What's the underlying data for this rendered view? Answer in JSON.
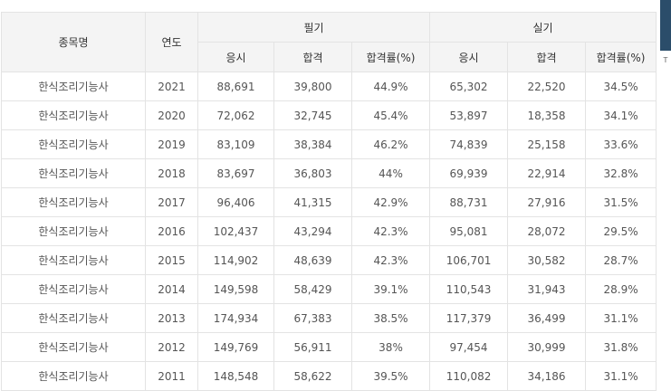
{
  "table": {
    "headers": {
      "item": "종목명",
      "year": "연도",
      "written": "필기",
      "practical": "실기",
      "applicants": "응시",
      "passed": "합격",
      "pass_rate": "합격률(%)"
    },
    "rows": [
      {
        "item": "한식조리기능사",
        "year": "2021",
        "w_app": "88,691",
        "w_pass": "39,800",
        "w_rate": "44.9%",
        "p_app": "65,302",
        "p_pass": "22,520",
        "p_rate": "34.5%"
      },
      {
        "item": "한식조리기능사",
        "year": "2020",
        "w_app": "72,062",
        "w_pass": "32,745",
        "w_rate": "45.4%",
        "p_app": "53,897",
        "p_pass": "18,358",
        "p_rate": "34.1%"
      },
      {
        "item": "한식조리기능사",
        "year": "2019",
        "w_app": "83,109",
        "w_pass": "38,384",
        "w_rate": "46.2%",
        "p_app": "74,839",
        "p_pass": "25,158",
        "p_rate": "33.6%"
      },
      {
        "item": "한식조리기능사",
        "year": "2018",
        "w_app": "83,697",
        "w_pass": "36,803",
        "w_rate": "44%",
        "p_app": "69,939",
        "p_pass": "22,914",
        "p_rate": "32.8%"
      },
      {
        "item": "한식조리기능사",
        "year": "2017",
        "w_app": "96,406",
        "w_pass": "41,315",
        "w_rate": "42.9%",
        "p_app": "88,731",
        "p_pass": "27,916",
        "p_rate": "31.5%"
      },
      {
        "item": "한식조리기능사",
        "year": "2016",
        "w_app": "102,437",
        "w_pass": "43,294",
        "w_rate": "42.3%",
        "p_app": "95,081",
        "p_pass": "28,072",
        "p_rate": "29.5%"
      },
      {
        "item": "한식조리기능사",
        "year": "2015",
        "w_app": "114,902",
        "w_pass": "48,639",
        "w_rate": "42.3%",
        "p_app": "106,701",
        "p_pass": "30,582",
        "p_rate": "28.7%"
      },
      {
        "item": "한식조리기능사",
        "year": "2014",
        "w_app": "149,598",
        "w_pass": "58,429",
        "w_rate": "39.1%",
        "p_app": "110,543",
        "p_pass": "31,943",
        "p_rate": "28.9%"
      },
      {
        "item": "한식조리기능사",
        "year": "2013",
        "w_app": "174,934",
        "w_pass": "67,383",
        "w_rate": "38.5%",
        "p_app": "117,379",
        "p_pass": "36,499",
        "p_rate": "31.1%"
      },
      {
        "item": "한식조리기능사",
        "year": "2012",
        "w_app": "149,769",
        "w_pass": "56,911",
        "w_rate": "38%",
        "p_app": "97,454",
        "p_pass": "30,999",
        "p_rate": "31.8%"
      },
      {
        "item": "한식조리기능사",
        "year": "2011",
        "w_app": "148,548",
        "w_pass": "58,622",
        "w_rate": "39.5%",
        "p_app": "110,082",
        "p_pass": "34,186",
        "p_rate": "31.1%"
      }
    ]
  },
  "side": {
    "bar_color": "#2b4d6a",
    "label": "T"
  }
}
